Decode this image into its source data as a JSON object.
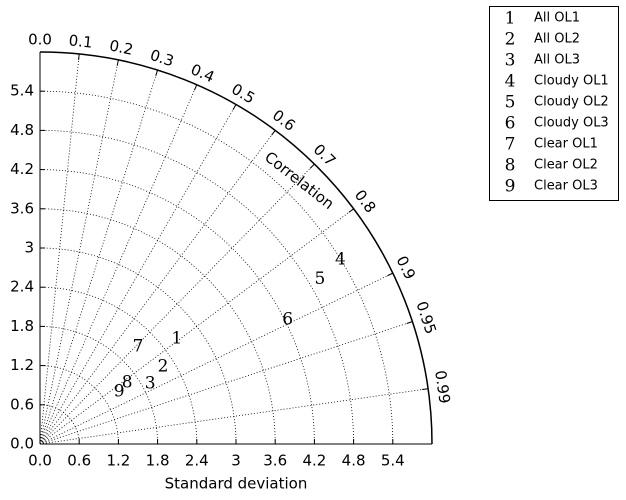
{
  "chart_data": {
    "type": "taylor",
    "xlabel": "Standard deviation",
    "corr_label": "Correlation",
    "xlim": [
      0,
      6
    ],
    "ylim": [
      0,
      6
    ],
    "xticks": [
      {
        "value": 0,
        "label": "0.0"
      },
      0.6,
      1.2,
      1.8,
      2.4,
      3.0,
      3.6,
      4.2,
      4.8,
      5.4
    ],
    "yticks": [
      {
        "value": 0,
        "label": "0.0"
      },
      0.6,
      1.2,
      1.8,
      2.4,
      3.0,
      3.6,
      4.2,
      4.8,
      5.4
    ],
    "corr_ticks": [
      {
        "value": 0,
        "label": "0.0"
      },
      0.1,
      0.2,
      0.3,
      0.4,
      0.5,
      0.6,
      0.7,
      0.8,
      0.9,
      0.95,
      0.99
    ],
    "grid": true,
    "legend": "outside-upper-right",
    "points": [
      {
        "marker": "1",
        "name": "All OL1",
        "std": 2.64,
        "corr": 0.793
      },
      {
        "marker": "2",
        "name": "All OL2",
        "std": 2.22,
        "corr": 0.848
      },
      {
        "marker": "3",
        "name": "All OL3",
        "std": 1.92,
        "corr": 0.878
      },
      {
        "marker": "4",
        "name": "Cloudy OL1",
        "std": 5.39,
        "corr": 0.853
      },
      {
        "marker": "5",
        "name": "Cloudy OL2",
        "std": 4.97,
        "corr": 0.862
      },
      {
        "marker": "6",
        "name": "Cloudy OL3",
        "std": 4.24,
        "corr": 0.894
      },
      {
        "marker": "7",
        "name": "Clear OL1",
        "std": 2.11,
        "corr": 0.711
      },
      {
        "marker": "8",
        "name": "Clear OL2",
        "std": 1.63,
        "corr": 0.819
      },
      {
        "marker": "9",
        "name": "Clear OL3",
        "std": 1.45,
        "corr": 0.835
      }
    ]
  }
}
